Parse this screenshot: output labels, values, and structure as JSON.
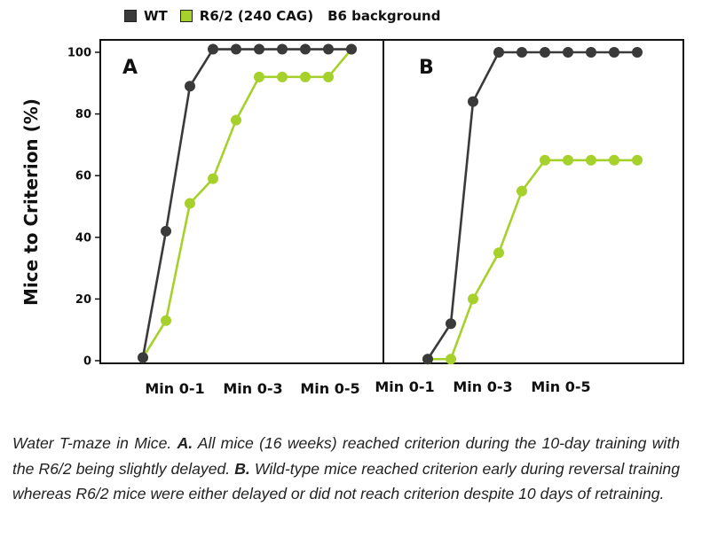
{
  "legend": {
    "items": [
      {
        "label": "WT",
        "color": "#3a3a3a"
      },
      {
        "label": "R6/2  (240 CAG)",
        "color": "#a6d12c"
      }
    ],
    "note": "B6 background"
  },
  "chart_data": [
    {
      "type": "line",
      "panel_label": "A",
      "ylabel": "Mice to Criterion (%)",
      "ylim": [
        0,
        100
      ],
      "yticks": [
        0,
        20,
        40,
        60,
        80,
        100
      ],
      "x_tick_labels": [
        "Min 0-1",
        "Min 0-3",
        "Min 0-5"
      ],
      "x": [
        1,
        2,
        3,
        4,
        5,
        6,
        7,
        8,
        9,
        10
      ],
      "series": [
        {
          "name": "WT",
          "color": "#3a3a3a",
          "values": [
            1,
            42,
            89,
            101,
            101,
            101,
            101,
            101,
            101,
            101
          ]
        },
        {
          "name": "R6/2  (240 CAG)",
          "color": "#a6d12c",
          "values": [
            1,
            13,
            51,
            59,
            78,
            92,
            92,
            92,
            92,
            101
          ]
        }
      ]
    },
    {
      "type": "line",
      "panel_label": "B",
      "ylim": [
        0,
        100
      ],
      "x_tick_labels": [
        "Min 0-1",
        "Min 0-3",
        "Min 0-5"
      ],
      "x": [
        1,
        2,
        3,
        4,
        5,
        6,
        7,
        8,
        9,
        10
      ],
      "series": [
        {
          "name": "WT",
          "color": "#3a3a3a",
          "values": [
            0.5,
            12,
            84,
            100,
            100,
            100,
            100,
            100,
            100,
            100
          ]
        },
        {
          "name": "R6/2  (240 CAG)",
          "color": "#a6d12c",
          "values": [
            0.5,
            0.5,
            20,
            35,
            55,
            65,
            65,
            65,
            65,
            65
          ]
        }
      ]
    }
  ],
  "caption": {
    "part1": "Water T-maze in Mice. ",
    "label_a": "A.",
    "part2": " All mice (16 weeks) reached criterion during the 10-day training with the R6/2 being slightly delayed. ",
    "label_b": "B.",
    "part3": " Wild-type mice reached criterion early during reversal training whereas R6/2 mice were either delayed or did not reach criterion despite 10 days of retraining."
  }
}
